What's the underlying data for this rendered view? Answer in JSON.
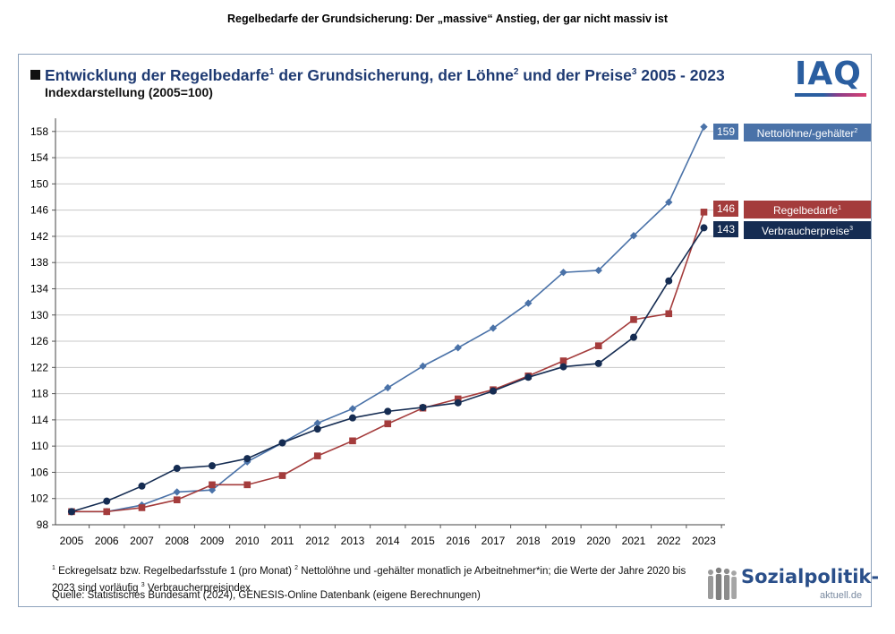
{
  "page": {
    "title": "Regelbedarfe der Grundsicherung: Der „massive“ Anstieg, der gar nicht massiv ist"
  },
  "header": {
    "title_main": "Entwicklung der Regelbedarfe",
    "sup1": "1",
    "title_mid1": " der Grundsicherung, der Löhne",
    "sup2": "2",
    "title_mid2": " und der Preise",
    "sup3": "3",
    "title_end": " 2005 - 2023",
    "subtitle": "Indexdarstellung (2005=100)",
    "logo": "IAQ"
  },
  "colors": {
    "nettoloehne": "#4a72a8",
    "regelbedarfe": "#a43c3c",
    "verbraucherpreise": "#152c52",
    "grid": "#c8c8c8"
  },
  "chart_data": {
    "type": "line",
    "title": "Entwicklung der Regelbedarfe der Grundsicherung, der Löhne und der Preise 2005 - 2023",
    "subtitle": "Indexdarstellung (2005=100)",
    "xlabel": "",
    "ylabel": "",
    "categories": [
      "2005",
      "2006",
      "2007",
      "2008",
      "2009",
      "2010",
      "2011",
      "2012",
      "2013",
      "2014",
      "2015",
      "2016",
      "2017",
      "2018",
      "2019",
      "2020",
      "2021",
      "2022",
      "2023"
    ],
    "yticks": [
      98,
      102,
      106,
      110,
      114,
      118,
      122,
      126,
      130,
      134,
      138,
      142,
      146,
      150,
      154,
      158
    ],
    "ylim": [
      98,
      160
    ],
    "grid": true,
    "series": [
      {
        "name": "Nettolöhne/-gehälter",
        "sup": "2",
        "marker": "diamond",
        "end_label": "159",
        "values": [
          100.0,
          100.0,
          101.0,
          103.0,
          103.3,
          107.6,
          110.5,
          113.5,
          115.7,
          118.9,
          122.2,
          125.0,
          128.0,
          131.8,
          136.5,
          136.8,
          142.1,
          147.2,
          158.7
        ]
      },
      {
        "name": "Regelbedarfe",
        "sup": "1",
        "marker": "square",
        "end_label": "146",
        "values": [
          100.0,
          100.0,
          100.6,
          101.8,
          104.1,
          104.1,
          105.5,
          108.5,
          110.8,
          113.4,
          115.8,
          117.2,
          118.6,
          120.7,
          123.0,
          125.3,
          129.3,
          130.2,
          145.7
        ]
      },
      {
        "name": "Verbraucherpreise",
        "sup": "3",
        "marker": "circle",
        "end_label": "143",
        "values": [
          100.0,
          101.6,
          103.9,
          106.6,
          107.0,
          108.1,
          110.5,
          112.6,
          114.3,
          115.3,
          115.9,
          116.6,
          118.4,
          120.5,
          122.1,
          122.6,
          126.6,
          135.2,
          143.3
        ]
      }
    ]
  },
  "footnotes": {
    "n1": "1",
    "t1": " Eckregelsatz bzw. Regelbedarfsstufe 1 (pro Monat)  ",
    "n2": "2",
    "t2": " Nettolöhne und -gehälter monatlich je Arbeitnehmer*in; die Werte der Jahre 2020 bis 2023 sind vorläufig  ",
    "n3": "3",
    "t3": " Verbraucherpreisindex",
    "source": "Quelle: Statistisches Bundesamt (2024), GENESIS-Online Datenbank (eigene Berechnungen)"
  },
  "logo2": {
    "main": "Sozialpolitik-",
    "sub": "aktuell.de"
  }
}
